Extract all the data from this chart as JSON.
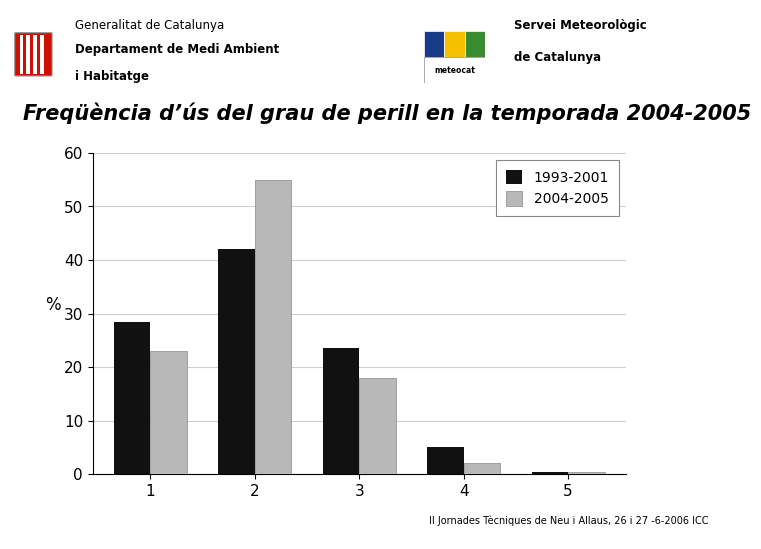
{
  "title": "Freqüència d’ús del grau de perill en la temporada 2004-2005",
  "header_left_line1": "Generalitat de Catalunya",
  "header_left_line2": "Departament de Medi Ambient",
  "header_left_line3": "i Habitatge",
  "header_right_line1": "Servei Meteorològic",
  "header_right_line2": "de Catalunya",
  "footer": "II Jornades Tècniques de Neu i Allaus, 26 i 27 -6-2006 ICC",
  "categories": [
    1,
    2,
    3,
    4,
    5
  ],
  "series1_label": "1993-2001",
  "series2_label": "2004-2005",
  "series1_values": [
    28.5,
    42,
    23.5,
    5,
    0.5
  ],
  "series2_values": [
    23,
    55,
    18,
    2,
    0.5
  ],
  "series1_color": "#111111",
  "series2_color": "#b8b8b8",
  "ylabel": "%",
  "ylim": [
    0,
    60
  ],
  "yticks": [
    0,
    10,
    20,
    30,
    40,
    50,
    60
  ],
  "bg_color": "#ffffff",
  "plot_bg_color": "#ffffff",
  "bar_width": 0.35,
  "grid_color": "#d0d0d0",
  "title_fontsize": 15,
  "axis_fontsize": 11,
  "legend_fontsize": 10,
  "stripe_color": "#3a2a8a",
  "meteocat_blue": "#1a3a8a",
  "meteocat_yellow": "#f5c000",
  "meteocat_green": "#3a8a30"
}
